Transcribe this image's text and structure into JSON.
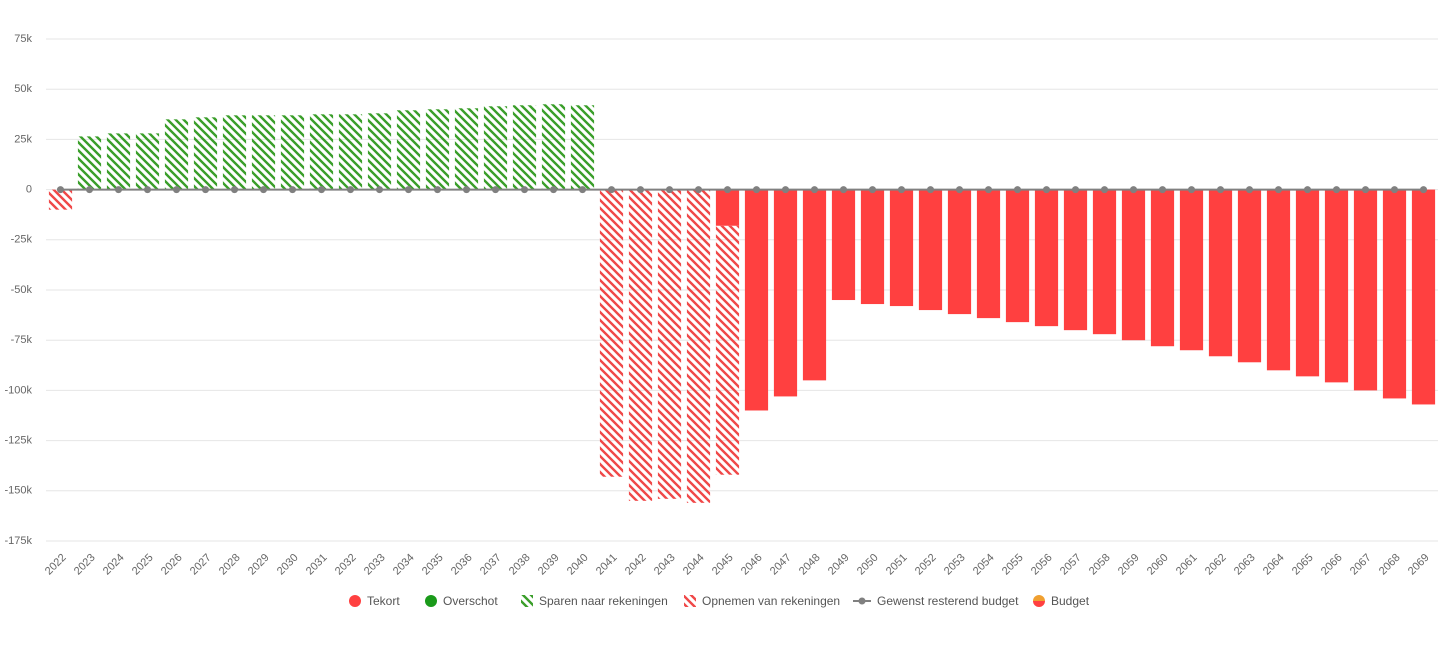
{
  "chart_data": {
    "type": "bar",
    "categories": [
      "2022",
      "2023",
      "2024",
      "2025",
      "2026",
      "2027",
      "2028",
      "2029",
      "2030",
      "2031",
      "2032",
      "2033",
      "2034",
      "2035",
      "2036",
      "2037",
      "2038",
      "2039",
      "2040",
      "2041",
      "2042",
      "2043",
      "2044",
      "2045",
      "2046",
      "2047",
      "2048",
      "2049",
      "2050",
      "2051",
      "2052",
      "2053",
      "2054",
      "2055",
      "2056",
      "2057",
      "2058",
      "2059",
      "2060",
      "2061",
      "2062",
      "2063",
      "2064",
      "2065",
      "2066",
      "2067",
      "2068",
      "2069"
    ],
    "ylim": [
      -175000,
      75000
    ],
    "yticks": [
      {
        "value": -175000,
        "label": "-175k"
      },
      {
        "value": -150000,
        "label": "-150k"
      },
      {
        "value": -125000,
        "label": "-125k"
      },
      {
        "value": -100000,
        "label": "-100k"
      },
      {
        "value": -75000,
        "label": "-75k"
      },
      {
        "value": -50000,
        "label": "-50k"
      },
      {
        "value": -25000,
        "label": "-25k"
      },
      0,
      {
        "value": 25000,
        "label": "25k"
      },
      {
        "value": 50000,
        "label": "50k"
      },
      {
        "value": 75000,
        "label": "75k"
      }
    ],
    "grid": true,
    "stacked": true,
    "series": [
      {
        "name": "Tekort",
        "color": "#ff4040",
        "values": [
          null,
          null,
          null,
          null,
          null,
          null,
          null,
          null,
          null,
          null,
          null,
          null,
          null,
          null,
          null,
          null,
          null,
          null,
          null,
          null,
          null,
          null,
          null,
          -18000,
          -110000,
          -103000,
          -95000,
          -55000,
          -57000,
          -58000,
          -60000,
          -62000,
          -64000,
          -66000,
          -68000,
          -70000,
          -72000,
          -75000,
          -78000,
          -80000,
          -83000,
          -86000,
          -90000,
          -93000,
          -96000,
          -100000,
          -104000,
          -107000
        ]
      },
      {
        "name": "Overschot",
        "color": "#1a9a1a",
        "values": [
          null,
          null,
          null,
          null,
          null,
          null,
          null,
          null,
          null,
          null,
          null,
          null,
          null,
          null,
          null,
          null,
          null,
          null,
          null,
          null,
          null,
          null,
          null,
          null,
          null,
          null,
          null,
          null,
          null,
          null,
          null,
          null,
          null,
          null,
          null,
          null,
          null,
          null,
          null,
          null,
          null,
          null,
          null,
          null,
          null,
          null,
          null,
          null
        ]
      },
      {
        "name": "Sparen naar rekeningen",
        "color": "#3a9e2a",
        "hatch": true,
        "values": [
          null,
          26500,
          28000,
          28000,
          35000,
          36000,
          37000,
          37000,
          37000,
          37500,
          37500,
          38000,
          39500,
          40000,
          40500,
          41500,
          42000,
          42500,
          42000,
          null,
          null,
          null,
          null,
          null,
          null,
          null,
          null,
          null,
          null,
          null,
          null,
          null,
          null,
          null,
          null,
          null,
          null,
          null,
          null,
          null,
          null,
          null,
          null,
          null,
          null,
          null,
          null,
          null
        ]
      },
      {
        "name": "Opnemen van rekeningen",
        "color": "#f04848",
        "hatch": true,
        "values": [
          -10000,
          null,
          null,
          null,
          null,
          null,
          null,
          null,
          null,
          null,
          null,
          null,
          null,
          null,
          null,
          null,
          null,
          null,
          null,
          -143000,
          -155000,
          -154000,
          -156000,
          -124000,
          null,
          null,
          null,
          null,
          null,
          null,
          null,
          null,
          null,
          null,
          null,
          null,
          null,
          null,
          null,
          null,
          null,
          null,
          null,
          null,
          null,
          null,
          null,
          null
        ]
      },
      {
        "name": "Gewenst resterend budget",
        "color": "#808080",
        "type": "line",
        "values": [
          0,
          0,
          0,
          0,
          0,
          0,
          0,
          0,
          0,
          0,
          0,
          0,
          0,
          0,
          0,
          0,
          0,
          0,
          0,
          0,
          0,
          0,
          0,
          0,
          0,
          0,
          0,
          0,
          0,
          0,
          0,
          0,
          0,
          0,
          0,
          0,
          0,
          0,
          0,
          0,
          0,
          0,
          0,
          0,
          0,
          0,
          0,
          0
        ]
      },
      {
        "name": "Budget",
        "color": "#f0a030",
        "type": "line",
        "values": [
          null,
          null,
          null,
          null,
          null,
          null,
          null,
          null,
          null,
          null,
          null,
          null,
          null,
          null,
          null,
          null,
          null,
          null,
          null,
          null,
          null,
          null,
          null,
          null,
          null,
          null,
          null,
          null,
          null,
          null,
          null,
          null,
          null,
          null,
          null,
          null,
          null,
          null,
          null,
          null,
          null,
          null,
          null,
          null,
          null,
          null,
          null,
          null
        ]
      }
    ]
  }
}
